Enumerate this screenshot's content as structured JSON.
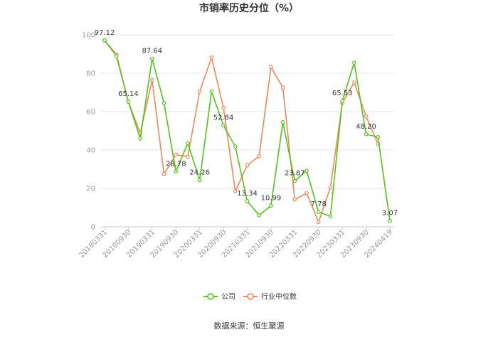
{
  "chart_data": {
    "type": "line",
    "title": "市销率历史分位（%）",
    "source": "数据来源：恒生聚源",
    "ylim": [
      0,
      100
    ],
    "yticks": [
      0,
      20,
      40,
      60,
      80,
      100
    ],
    "grid": true,
    "legend_position": "bottom",
    "x": [
      "20180331",
      "20180630",
      "20180930",
      "20181231",
      "20190331",
      "20190630",
      "20190930",
      "20191231",
      "20200331",
      "20200630",
      "20200930",
      "20201231",
      "20210331",
      "20210630",
      "20210930",
      "20211231",
      "20220331",
      "20220630",
      "20220930",
      "20221231",
      "20230331",
      "20230630",
      "20230930",
      "20231231",
      "20240419"
    ],
    "xtick_labels": [
      "20180331",
      "20180930",
      "20190331",
      "20190930",
      "20200331",
      "20200930",
      "20210331",
      "20210930",
      "20220331",
      "20220930",
      "20230331",
      "20230930",
      "20240419"
    ],
    "series": [
      {
        "name": "公司",
        "color": "#52c41a",
        "values": [
          97.12,
          89,
          65.14,
          46,
          87.64,
          64.5,
          28.78,
          43.5,
          24.26,
          70.5,
          52.84,
          41.8,
          13.34,
          6,
          10.99,
          54.5,
          23.87,
          29.2,
          7.78,
          5.5,
          65.53,
          85.5,
          48.2,
          46.8,
          3.07
        ]
      },
      {
        "name": "行业中位数",
        "color": "#f4875a",
        "values": [
          97.12,
          89.8,
          65.14,
          48.8,
          76.5,
          27.5,
          37.6,
          36.5,
          70.5,
          88.2,
          62,
          18.5,
          32,
          36.8,
          83.2,
          72.5,
          14.2,
          17.5,
          2.5,
          20.5,
          64.5,
          75.2,
          57.5,
          43.2,
          null
        ]
      }
    ],
    "data_labels": [
      {
        "index": 0,
        "text": "97.12"
      },
      {
        "index": 2,
        "text": "65.14"
      },
      {
        "index": 4,
        "text": "87.64"
      },
      {
        "index": 6,
        "text": "28.78"
      },
      {
        "index": 8,
        "text": "24.26"
      },
      {
        "index": 10,
        "text": "52.84"
      },
      {
        "index": 12,
        "text": "13.34"
      },
      {
        "index": 14,
        "text": "10.99"
      },
      {
        "index": 16,
        "text": "23.87"
      },
      {
        "index": 18,
        "text": "7.78"
      },
      {
        "index": 20,
        "text": "65.53"
      },
      {
        "index": 22,
        "text": "48.20"
      },
      {
        "index": 24,
        "text": "3.07"
      }
    ]
  }
}
